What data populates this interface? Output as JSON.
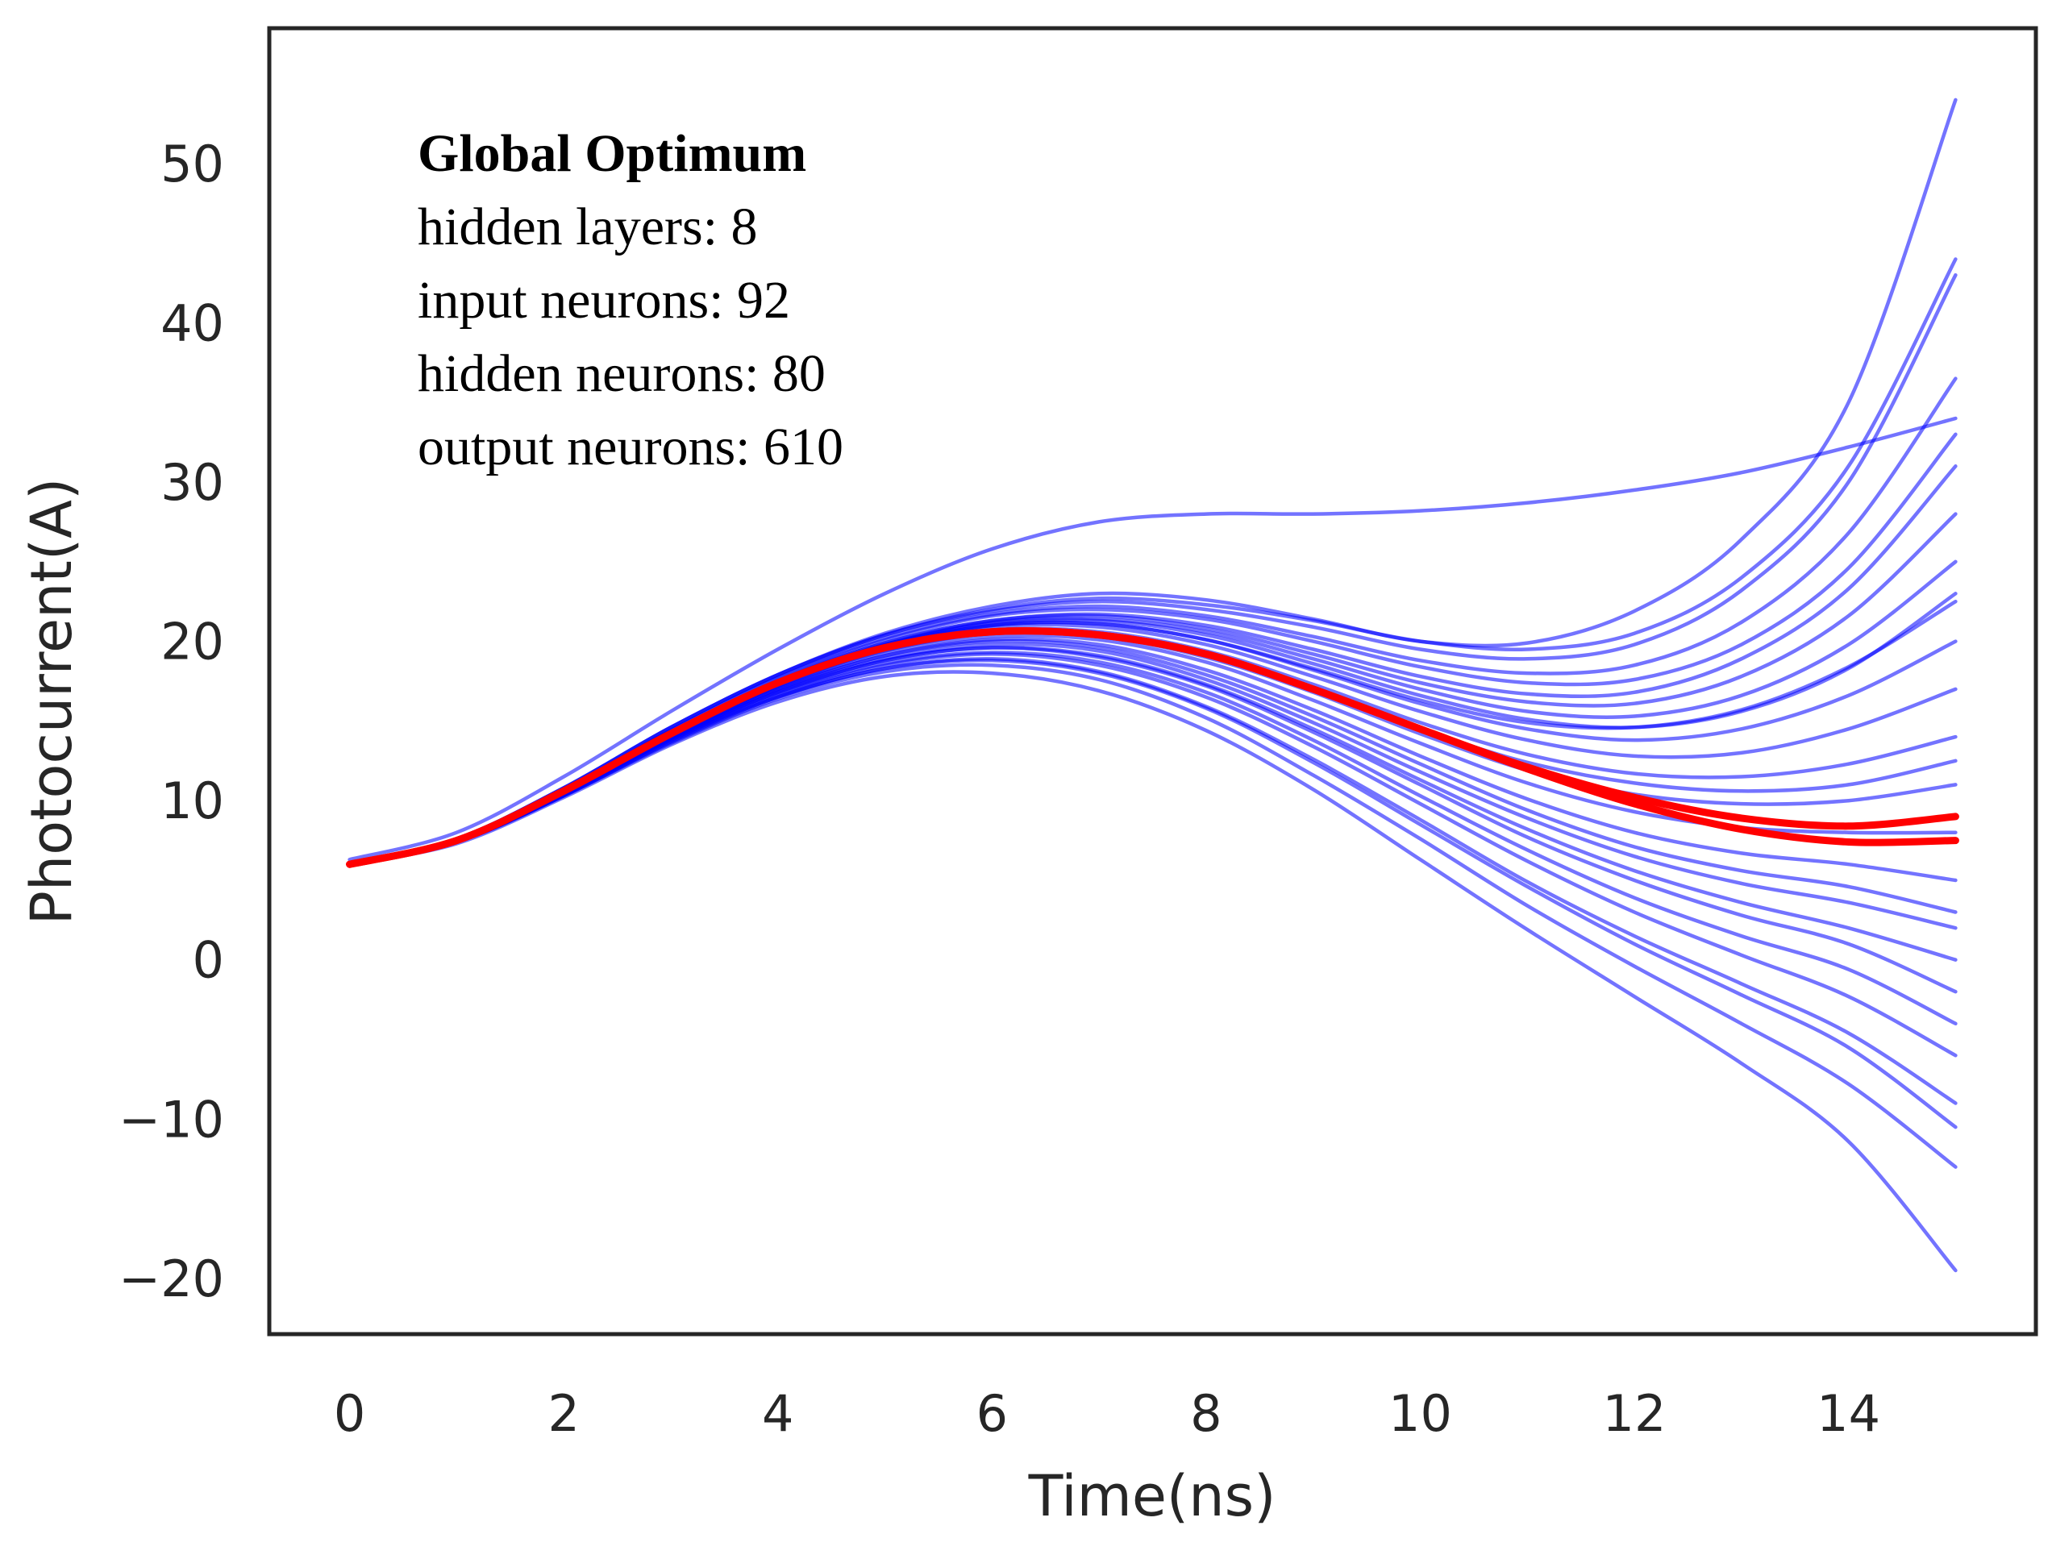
{
  "chart_data": {
    "type": "line",
    "title": "",
    "xlabel": "Time(ns)",
    "ylabel": "Photocurrent(A)",
    "xlim": [
      -0.75,
      15.75
    ],
    "ylim": [
      -23.5,
      58.5
    ],
    "x_ticks": [
      0,
      2,
      4,
      6,
      8,
      10,
      12,
      14
    ],
    "x_tick_labels": [
      "0",
      "2",
      "4",
      "6",
      "8",
      "10",
      "12",
      "14"
    ],
    "y_ticks": [
      -20,
      -10,
      0,
      10,
      20,
      30,
      40,
      50
    ],
    "y_tick_labels": [
      "−20",
      "−10",
      "0",
      "10",
      "20",
      "30",
      "40",
      "50"
    ],
    "grid": false,
    "annotation": {
      "title": "Global Optimum",
      "lines": [
        "hidden layers: 8",
        "input neurons: 92",
        "hidden neurons: 80",
        "output neurons: 610"
      ]
    },
    "series_style": {
      "ensemble_color": "#0000ff",
      "ensemble_opacity": 0.55,
      "highlight_color": "#ff0000"
    },
    "x_samples": [
      0,
      1,
      2,
      3,
      4,
      5,
      6,
      7,
      8,
      9,
      10,
      11,
      12,
      13,
      14,
      15
    ],
    "series": [
      {
        "name": "ensemble",
        "values": [
          6.0,
          7.6,
          10.8,
          14.6,
          17.9,
          20.5,
          22.2,
          23.0,
          22.6,
          21.4,
          20.0,
          19.9,
          21.9,
          26.4,
          35.0,
          54.0
        ]
      },
      {
        "name": "ensemble",
        "values": [
          6.3,
          8.0,
          11.5,
          15.6,
          19.5,
          23.0,
          25.8,
          27.5,
          28.0,
          28.0,
          28.2,
          28.7,
          29.5,
          30.6,
          32.2,
          34.0
        ]
      },
      {
        "name": "ensemble",
        "values": [
          6.0,
          7.6,
          10.8,
          14.6,
          17.9,
          20.4,
          22.0,
          22.7,
          22.3,
          21.3,
          20.0,
          19.5,
          20.5,
          24.0,
          31.0,
          44.0
        ]
      },
      {
        "name": "ensemble",
        "values": [
          6.0,
          7.6,
          10.8,
          14.6,
          17.9,
          20.4,
          21.9,
          22.5,
          22.0,
          20.9,
          19.5,
          18.9,
          19.8,
          23.2,
          30.0,
          43.0
        ]
      },
      {
        "name": "ensemble",
        "values": [
          6.0,
          7.5,
          10.7,
          14.4,
          17.7,
          20.2,
          21.7,
          22.2,
          21.6,
          20.3,
          18.8,
          18.0,
          18.5,
          21.2,
          26.8,
          36.5
        ]
      },
      {
        "name": "ensemble",
        "values": [
          6.0,
          7.5,
          10.7,
          14.4,
          17.7,
          20.1,
          21.6,
          22.0,
          21.4,
          20.0,
          18.4,
          17.4,
          17.6,
          19.8,
          24.6,
          33.0
        ]
      },
      {
        "name": "ensemble",
        "values": [
          6.0,
          7.5,
          10.6,
          14.3,
          17.5,
          19.9,
          21.3,
          21.7,
          21.0,
          19.5,
          17.8,
          16.7,
          16.8,
          18.9,
          23.3,
          31.0
        ]
      },
      {
        "name": "ensemble",
        "values": [
          6.0,
          7.5,
          10.6,
          14.3,
          17.5,
          19.9,
          21.3,
          21.6,
          20.8,
          19.2,
          17.4,
          16.2,
          16.1,
          17.8,
          21.6,
          28.0
        ]
      },
      {
        "name": "ensemble",
        "values": [
          6.0,
          7.5,
          10.6,
          14.3,
          17.5,
          19.8,
          21.2,
          21.4,
          20.6,
          18.9,
          17.0,
          15.6,
          15.3,
          16.6,
          19.8,
          25.0
        ]
      },
      {
        "name": "ensemble",
        "values": [
          6.0,
          7.5,
          10.6,
          14.2,
          17.4,
          19.8,
          21.1,
          21.3,
          20.4,
          18.6,
          16.6,
          15.1,
          14.6,
          15.6,
          18.3,
          23.0
        ]
      },
      {
        "name": "ensemble",
        "values": [
          6.0,
          7.5,
          10.6,
          14.2,
          17.4,
          19.7,
          21.0,
          21.1,
          20.1,
          18.2,
          16.1,
          14.5,
          13.8,
          14.5,
          16.6,
          20.0
        ]
      },
      {
        "name": "ensemble",
        "values": [
          6.0,
          7.5,
          10.6,
          14.2,
          17.3,
          19.6,
          20.9,
          20.9,
          19.8,
          17.8,
          15.6,
          13.8,
          12.8,
          13.0,
          14.5,
          17.0
        ]
      },
      {
        "name": "ensemble",
        "values": [
          6.0,
          7.5,
          10.6,
          14.2,
          17.3,
          19.5,
          20.7,
          20.6,
          19.4,
          17.3,
          14.9,
          12.9,
          11.7,
          11.5,
          12.3,
          14.0
        ]
      },
      {
        "name": "ensemble",
        "values": [
          6.0,
          7.5,
          10.5,
          14.1,
          17.2,
          19.4,
          20.5,
          20.3,
          19.0,
          16.8,
          14.2,
          11.9,
          10.4,
          9.8,
          10.0,
          11.0
        ]
      },
      {
        "name": "ensemble",
        "values": [
          6.0,
          7.5,
          10.5,
          14.1,
          17.1,
          19.3,
          20.3,
          20.1,
          18.7,
          16.3,
          13.6,
          11.1,
          9.3,
          8.3,
          8.0,
          8.0
        ]
      },
      {
        "name": "ensemble",
        "values": [
          6.0,
          7.5,
          10.5,
          14.0,
          17.0,
          19.1,
          20.1,
          19.8,
          18.2,
          15.7,
          12.8,
          10.1,
          8.0,
          6.7,
          6.0,
          5.0
        ]
      },
      {
        "name": "ensemble",
        "values": [
          6.0,
          7.5,
          10.5,
          14.0,
          17.0,
          19.1,
          20.0,
          19.6,
          17.9,
          15.3,
          12.3,
          9.4,
          7.1,
          5.6,
          4.6,
          3.0
        ]
      },
      {
        "name": "ensemble",
        "values": [
          6.0,
          7.4,
          10.4,
          13.9,
          16.8,
          18.8,
          19.6,
          19.1,
          17.3,
          14.5,
          11.3,
          8.2,
          5.6,
          3.6,
          2.0,
          0.0
        ]
      },
      {
        "name": "ensemble",
        "values": [
          6.0,
          7.4,
          10.4,
          13.9,
          16.8,
          18.8,
          19.6,
          19.0,
          17.2,
          14.3,
          11.0,
          7.7,
          5.0,
          2.8,
          1.0,
          -2.0
        ]
      },
      {
        "name": "ensemble",
        "values": [
          6.0,
          7.4,
          10.4,
          13.8,
          16.7,
          18.6,
          19.3,
          18.7,
          16.8,
          13.8,
          10.3,
          6.9,
          3.9,
          1.5,
          -0.6,
          -4.0
        ]
      },
      {
        "name": "ensemble",
        "values": [
          6.0,
          7.4,
          10.4,
          13.8,
          16.6,
          18.5,
          19.2,
          18.5,
          16.5,
          13.4,
          9.8,
          6.2,
          3.0,
          0.3,
          -2.3,
          -6.0
        ]
      },
      {
        "name": "ensemble",
        "values": [
          6.0,
          7.4,
          10.3,
          13.7,
          16.5,
          18.3,
          18.9,
          18.1,
          15.9,
          12.6,
          8.8,
          4.9,
          1.5,
          -1.5,
          -4.6,
          -9.0
        ]
      },
      {
        "name": "ensemble",
        "values": [
          6.0,
          7.4,
          10.3,
          13.7,
          16.5,
          18.3,
          18.8,
          18.0,
          15.8,
          12.4,
          8.5,
          4.6,
          1.0,
          -2.2,
          -5.5,
          -10.5
        ]
      },
      {
        "name": "ensemble",
        "values": [
          6.0,
          7.4,
          10.3,
          13.6,
          16.4,
          18.1,
          18.5,
          17.6,
          15.2,
          11.6,
          7.6,
          3.4,
          -0.4,
          -4.0,
          -7.8,
          -13.0
        ]
      },
      {
        "name": "ensemble",
        "values": [
          6.0,
          7.3,
          10.2,
          13.5,
          16.2,
          17.8,
          18.0,
          16.9,
          14.4,
          10.7,
          6.3,
          1.9,
          -2.3,
          -6.5,
          -11.4,
          -19.5
        ]
      },
      {
        "name": "ensemble",
        "values": [
          6.0,
          7.5,
          10.6,
          14.2,
          17.4,
          19.7,
          21.0,
          21.1,
          20.1,
          18.3,
          16.3,
          14.9,
          14.6,
          15.7,
          18.4,
          22.5
        ]
      },
      {
        "name": "ensemble",
        "values": [
          6.0,
          7.5,
          10.5,
          14.1,
          17.2,
          19.5,
          20.6,
          20.4,
          19.1,
          16.9,
          14.5,
          12.4,
          11.1,
          10.6,
          11.0,
          12.5
        ]
      },
      {
        "name": "ensemble",
        "values": [
          6.0,
          7.4,
          10.4,
          13.9,
          16.9,
          18.9,
          19.8,
          19.4,
          17.6,
          14.9,
          11.8,
          8.9,
          6.5,
          4.8,
          3.6,
          2.0
        ]
      },
      {
        "name": "highlight",
        "values": [
          6.0,
          7.5,
          10.6,
          14.2,
          17.4,
          19.6,
          20.6,
          20.4,
          19.2,
          17.0,
          14.5,
          12.0,
          9.8,
          8.2,
          7.4,
          7.5
        ]
      },
      {
        "name": "highlight",
        "values": [
          6.0,
          7.5,
          10.6,
          14.2,
          17.4,
          19.6,
          20.6,
          20.4,
          19.2,
          17.0,
          14.5,
          12.1,
          10.2,
          8.9,
          8.4,
          9.0
        ]
      }
    ]
  }
}
